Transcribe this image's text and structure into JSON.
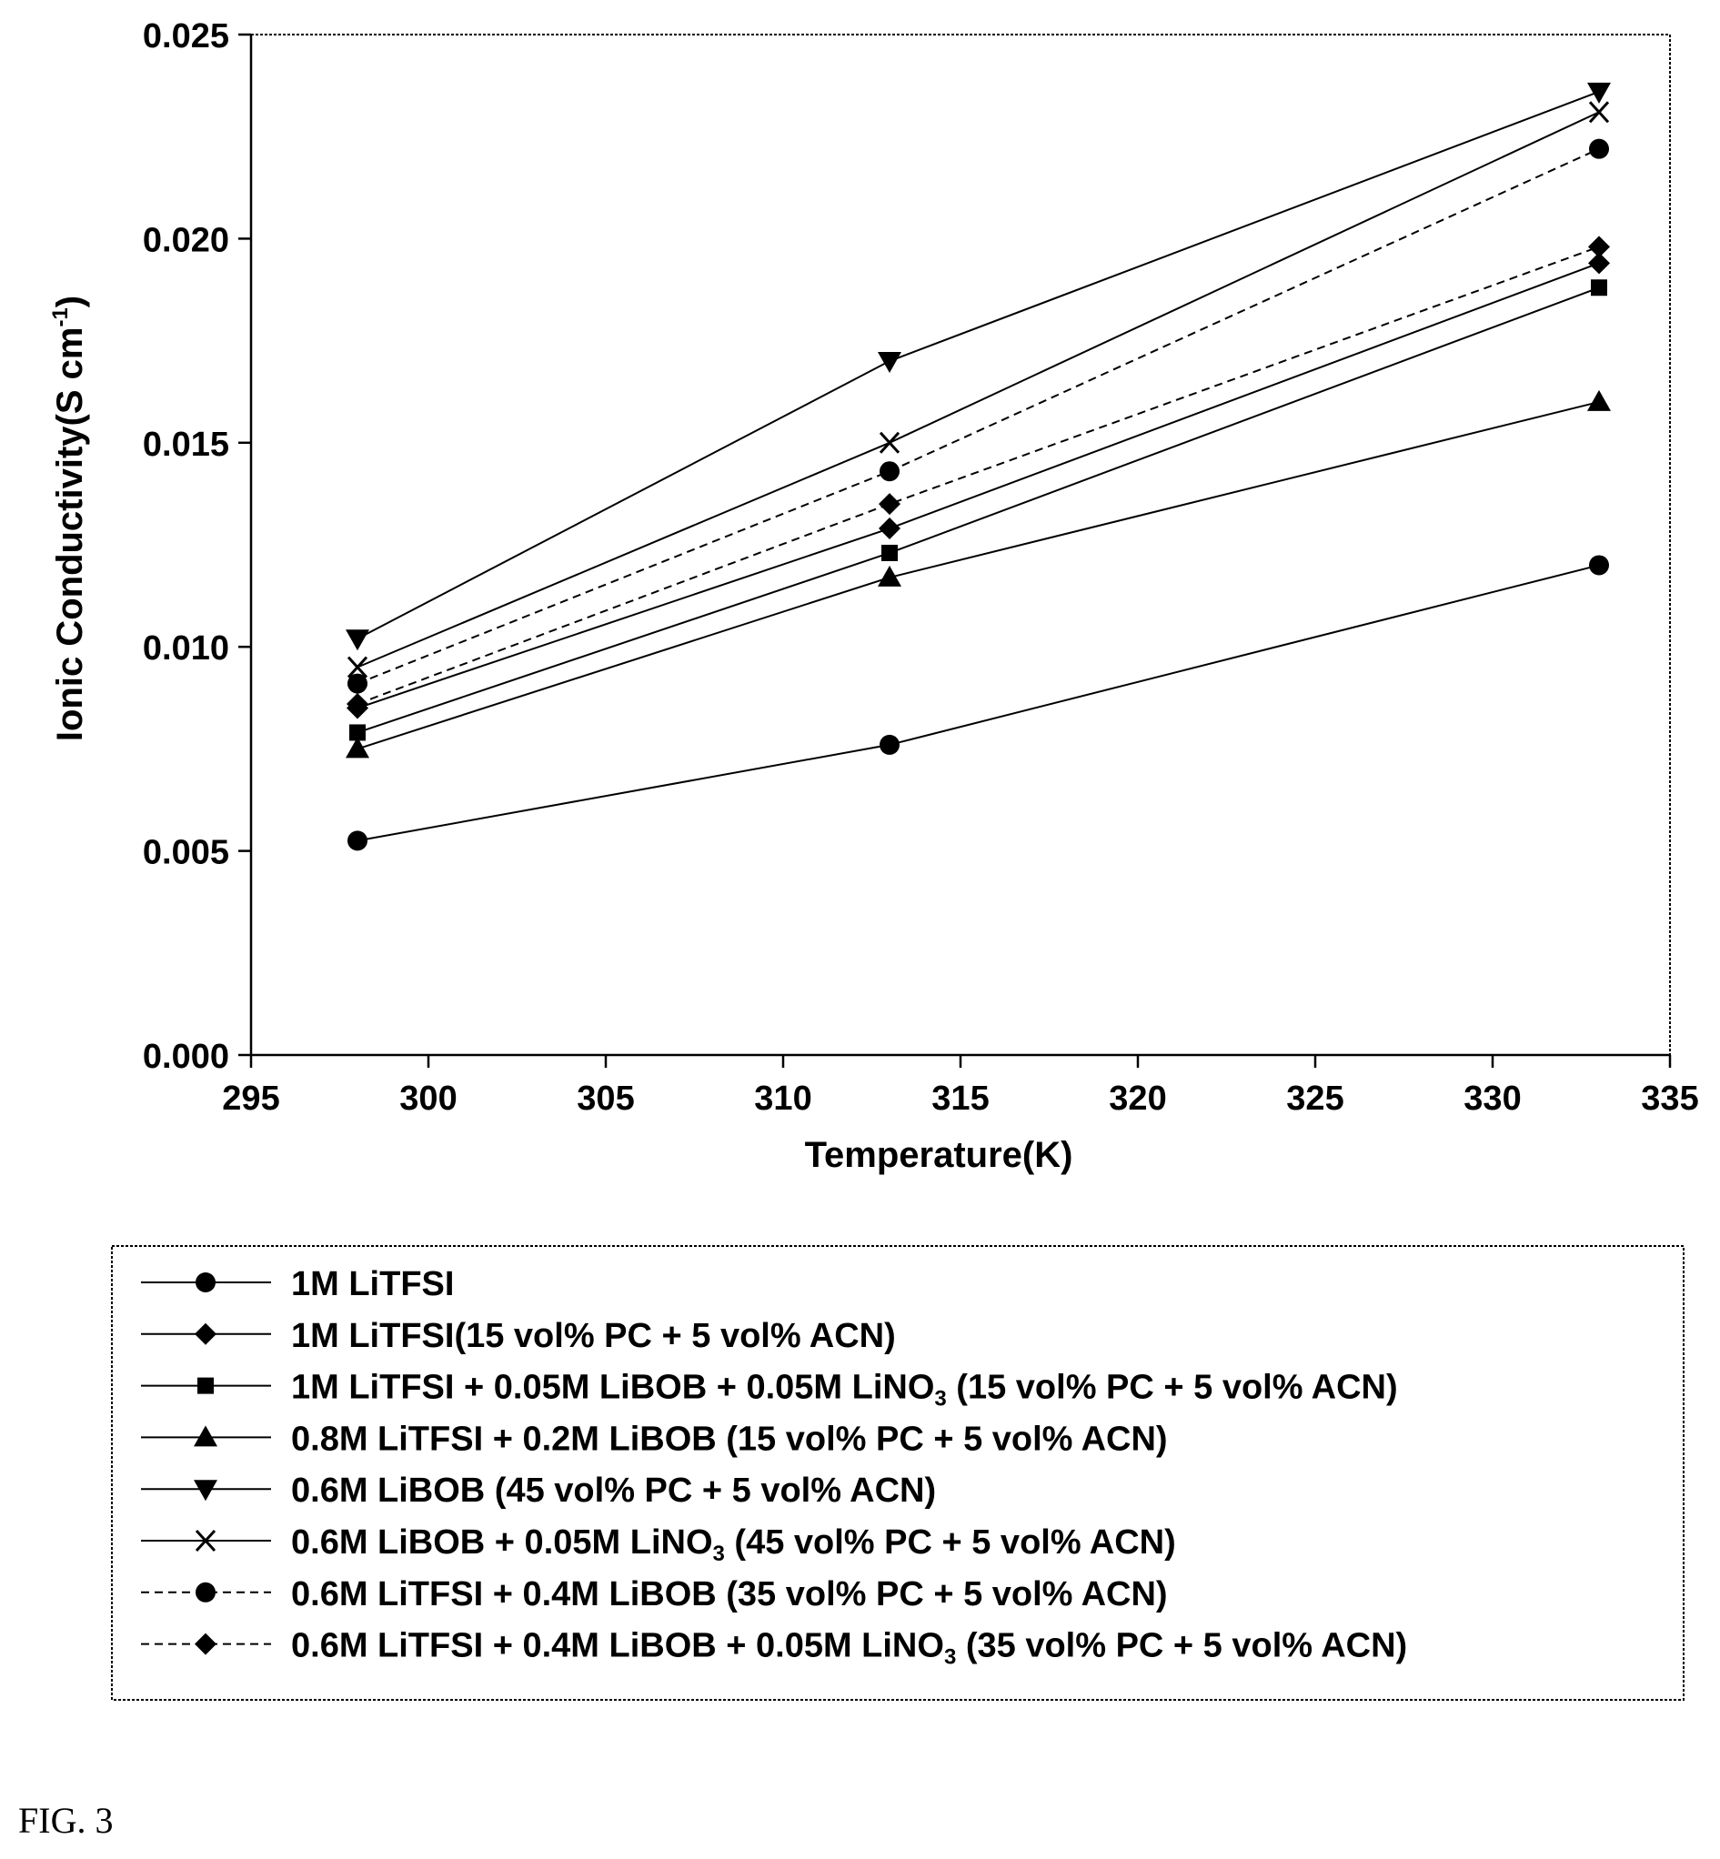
{
  "figure_label": "FIG. 3",
  "chart_data": {
    "type": "line",
    "xlabel": "Temperature(K)",
    "ylabel": "Ionic Conductivity(S cm",
    "ylabel_sup": "-1",
    "ylabel_close": ")",
    "xlim": [
      295,
      335
    ],
    "ylim": [
      0.0,
      0.025
    ],
    "x_ticks": [
      "295",
      "300",
      "305",
      "310",
      "315",
      "320",
      "325",
      "330",
      "335"
    ],
    "y_ticks": [
      "0.000",
      "0.005",
      "0.010",
      "0.015",
      "0.020",
      "0.025"
    ],
    "x": [
      298,
      313,
      333
    ],
    "grid": false,
    "legend_position": "below",
    "series": [
      {
        "name": "1M LiTFSI",
        "sub": "",
        "tail": "",
        "marker": "circle",
        "dash": "solid",
        "values": [
          0.00525,
          0.0076,
          0.012
        ]
      },
      {
        "name": "1M LiTFSI(15 vol% PC + 5 vol% ACN)",
        "sub": "",
        "tail": "",
        "marker": "diamond",
        "dash": "solid",
        "values": [
          0.0085,
          0.0129,
          0.0194
        ]
      },
      {
        "name": "1M LiTFSI + 0.05M LiBOB + 0.05M LiNO",
        "sub": "3",
        "tail": " (15 vol% PC + 5 vol% ACN)",
        "marker": "square",
        "dash": "solid",
        "values": [
          0.0079,
          0.0123,
          0.0188
        ]
      },
      {
        "name": "0.8M LiTFSI + 0.2M LiBOB (15 vol% PC + 5 vol% ACN)",
        "sub": "",
        "tail": "",
        "marker": "triangle-up",
        "dash": "solid",
        "values": [
          0.0075,
          0.0117,
          0.016
        ]
      },
      {
        "name": "0.6M LiBOB (45 vol% PC + 5 vol% ACN)",
        "sub": "",
        "tail": "",
        "marker": "triangle-down",
        "dash": "solid",
        "values": [
          0.0102,
          0.017,
          0.0236
        ]
      },
      {
        "name": "0.6M LiBOB + 0.05M LiNO",
        "sub": "3",
        "tail": " (45 vol% PC + 5 vol% ACN)",
        "marker": "x",
        "dash": "solid",
        "values": [
          0.0095,
          0.015,
          0.0231
        ]
      },
      {
        "name": "0.6M LiTFSI + 0.4M LiBOB (35 vol% PC + 5 vol% ACN)",
        "sub": "",
        "tail": "",
        "marker": "circle",
        "dash": "dashed",
        "values": [
          0.0091,
          0.0143,
          0.0222
        ]
      },
      {
        "name": "0.6M LiTFSI + 0.4M LiBOB + 0.05M LiNO",
        "sub": "3",
        "tail": " (35 vol% PC + 5 vol% ACN)",
        "marker": "diamond",
        "dash": "dashed",
        "values": [
          0.0086,
          0.0135,
          0.0198
        ]
      }
    ]
  }
}
